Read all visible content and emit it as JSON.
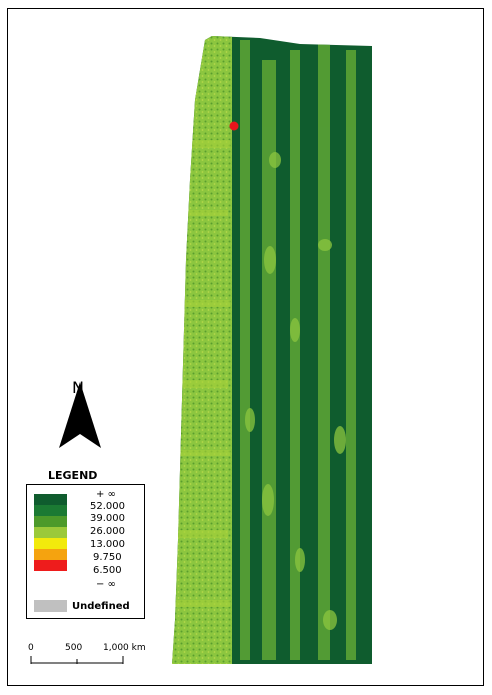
{
  "map": {
    "north_label": "N",
    "colors": {
      "background_dark": "#0f5c2e",
      "light_green": "#7fbf3f",
      "yellow_green": "#a6d13a",
      "marker_red": "#e8141c"
    }
  },
  "legend": {
    "title": "LEGEND",
    "entries": [
      {
        "label": "+ ∞",
        "color": "#0f5c2e"
      },
      {
        "label": "52.000",
        "color": "#1b7a33"
      },
      {
        "label": "39.000",
        "color": "#4c9a2a"
      },
      {
        "label": "26.000",
        "color": "#9bc93a"
      },
      {
        "label": "13.000",
        "color": "#f2ea0c"
      },
      {
        "label": "9.750",
        "color": "#f5a30f"
      },
      {
        "label": "6.500",
        "color": "#ee1c1c"
      },
      {
        "label": "− ∞",
        "color": ""
      }
    ],
    "undefined_label": "Undefined",
    "undefined_color": "#c0c0c0"
  },
  "scale": {
    "labels": [
      "0",
      "500",
      "1,000 km"
    ]
  }
}
